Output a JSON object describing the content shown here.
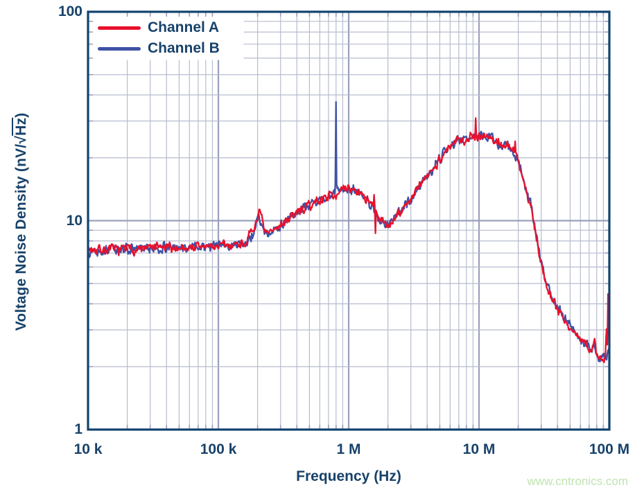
{
  "chart_data": {
    "type": "line",
    "title": "",
    "xlabel": "Frequency (Hz)",
    "ylabel": "Voltage Noise Density (nV/√Hz)",
    "ylabel_parts": {
      "prefix": "Voltage Noise Density (nV/√",
      "overlined": "Hz",
      "suffix": ")"
    },
    "x_scale": "log",
    "y_scale": "log",
    "xlim": [
      10000,
      100000000
    ],
    "ylim": [
      1,
      100
    ],
    "x_ticks": [
      {
        "v": 10000,
        "label": "10 k"
      },
      {
        "v": 100000,
        "label": "100 k"
      },
      {
        "v": 1000000,
        "label": "1 M"
      },
      {
        "v": 10000000,
        "label": "10 M"
      },
      {
        "v": 100000000,
        "label": "100 M"
      }
    ],
    "y_ticks": [
      {
        "v": 100,
        "label": "100"
      },
      {
        "v": 10,
        "label": "10"
      },
      {
        "v": 1,
        "label": "1"
      }
    ],
    "grid": {
      "minor": true,
      "major": true,
      "minor_color": "#b7bccf",
      "major_color": "#9aa0bb"
    },
    "frame_color": "#11436e",
    "text_color": "#17426a",
    "legend": {
      "position": "top-left",
      "entries": [
        "Channel A",
        "Channel B"
      ]
    },
    "noise_sigma_log10": 0.026,
    "series": [
      {
        "name": "Channel B",
        "color": "#3e52a5",
        "seed": 13,
        "anchors": [
          [
            10000.0,
            7.25
          ],
          [
            15000.0,
            7.3
          ],
          [
            22000.0,
            7.3
          ],
          [
            32000.0,
            7.35
          ],
          [
            50000.0,
            7.45
          ],
          [
            70000.0,
            7.5
          ],
          [
            100000.0,
            7.6
          ],
          [
            130000.0,
            7.6
          ],
          [
            160000.0,
            7.85
          ],
          [
            185000.0,
            8.6
          ],
          [
            202000.0,
            10.6
          ],
          [
            230000.0,
            8.5
          ],
          [
            260000.0,
            8.9
          ],
          [
            300000.0,
            9.55
          ],
          [
            350000.0,
            10.25
          ],
          [
            450000.0,
            11.35
          ],
          [
            550000.0,
            12.1
          ],
          [
            700000.0,
            13.1
          ],
          [
            850000.0,
            13.8
          ],
          [
            1000000.0,
            14.1
          ],
          [
            1150000.0,
            13.9
          ],
          [
            1350000.0,
            12.9
          ],
          [
            1550000.0,
            11.3
          ],
          [
            1750000.0,
            9.9
          ],
          [
            1950000.0,
            9.6
          ],
          [
            2200000.0,
            10.1
          ],
          [
            2500000.0,
            11
          ],
          [
            2800000.0,
            12.2
          ],
          [
            3300000.0,
            13.9
          ],
          [
            4000000.0,
            16.4
          ],
          [
            5000000.0,
            19.9
          ],
          [
            6000000.0,
            22.7
          ],
          [
            7000000.0,
            24.3
          ],
          [
            8500000.0,
            25.3
          ],
          [
            10000000.0,
            25.9
          ],
          [
            11500000.0,
            25.5
          ],
          [
            13000000.0,
            24.5
          ],
          [
            15000000.0,
            23.1
          ],
          [
            17500000.0,
            22.3
          ],
          [
            18800000.0,
            20.8
          ],
          [
            20000000.0,
            19.3
          ],
          [
            21500000.0,
            16.3
          ],
          [
            23000000.0,
            13.9
          ],
          [
            25000000.0,
            11.9
          ],
          [
            27000000.0,
            9.1
          ],
          [
            29000000.0,
            6.9
          ],
          [
            32000000.0,
            5.4
          ],
          [
            36000000.0,
            4.35
          ],
          [
            40000000.0,
            3.85
          ],
          [
            45000000.0,
            3.45
          ],
          [
            50000000.0,
            3.1
          ],
          [
            55000000.0,
            2.9
          ],
          [
            62000000.0,
            2.7
          ],
          [
            70000000.0,
            2.5
          ],
          [
            74000000.0,
            2.45
          ],
          [
            77000000.0,
            2.6
          ],
          [
            80000000.0,
            2.35
          ],
          [
            84000000.0,
            2.2
          ],
          [
            88000000.0,
            2.25
          ],
          [
            91000000.0,
            2.2
          ],
          [
            94000000.0,
            2.25
          ],
          [
            97000000.0,
            2.3
          ],
          [
            100000000.0,
            2.4
          ]
        ],
        "spikes": [
          [
            790000.0,
            15
          ],
          [
            800000.0,
            37
          ],
          [
            810000.0,
            15
          ]
        ]
      },
      {
        "name": "Channel A",
        "color": "#e8112d",
        "seed": 7,
        "anchors": [
          [
            10000.0,
            7.3
          ],
          [
            15000.0,
            7.25
          ],
          [
            22000.0,
            7.3
          ],
          [
            32000.0,
            7.4
          ],
          [
            50000.0,
            7.4
          ],
          [
            70000.0,
            7.5
          ],
          [
            100000.0,
            7.55
          ],
          [
            130000.0,
            7.65
          ],
          [
            160000.0,
            7.9
          ],
          [
            185000.0,
            8.8
          ],
          [
            205000.0,
            11.2
          ],
          [
            230000.0,
            8.5
          ],
          [
            260000.0,
            8.9
          ],
          [
            300000.0,
            9.6
          ],
          [
            350000.0,
            10.3
          ],
          [
            450000.0,
            11.4
          ],
          [
            550000.0,
            12.2
          ],
          [
            700000.0,
            13.2
          ],
          [
            850000.0,
            13.7
          ],
          [
            1000000.0,
            14.2
          ],
          [
            1150000.0,
            14
          ],
          [
            1350000.0,
            13
          ],
          [
            1550000.0,
            11.4
          ],
          [
            1750000.0,
            10
          ],
          [
            1950000.0,
            9.5
          ],
          [
            2200000.0,
            10
          ],
          [
            2500000.0,
            10.9
          ],
          [
            2800000.0,
            12.1
          ],
          [
            3300000.0,
            13.8
          ],
          [
            4000000.0,
            16.3
          ],
          [
            5000000.0,
            19.8
          ],
          [
            6000000.0,
            22.6
          ],
          [
            7000000.0,
            24.2
          ],
          [
            8500000.0,
            25.2
          ],
          [
            10000000.0,
            25.7
          ],
          [
            11500000.0,
            25.4
          ],
          [
            13000000.0,
            24.3
          ],
          [
            15000000.0,
            23.2
          ],
          [
            17500000.0,
            22.4
          ],
          [
            18800000.0,
            21
          ],
          [
            20000000.0,
            19.5
          ],
          [
            21500000.0,
            16.5
          ],
          [
            23000000.0,
            13.8
          ],
          [
            25000000.0,
            11.8
          ],
          [
            27000000.0,
            9
          ],
          [
            29000000.0,
            6.8
          ],
          [
            32000000.0,
            5.3
          ],
          [
            36000000.0,
            4.3
          ],
          [
            40000000.0,
            3.8
          ],
          [
            45000000.0,
            3.4
          ],
          [
            50000000.0,
            3.05
          ],
          [
            55000000.0,
            2.85
          ],
          [
            62000000.0,
            2.65
          ],
          [
            70000000.0,
            2.45
          ],
          [
            74000000.0,
            2.4
          ],
          [
            77000000.0,
            2.75
          ],
          [
            80000000.0,
            2.3
          ],
          [
            84000000.0,
            2.1
          ],
          [
            88000000.0,
            2.2
          ],
          [
            91000000.0,
            2.1
          ],
          [
            93500000.0,
            2.15
          ],
          [
            95000000.0,
            3.4
          ],
          [
            96000000.0,
            2.4
          ],
          [
            96800000.0,
            2.5
          ],
          [
            97500000.0,
            4.3
          ],
          [
            98200000.0,
            5.6
          ],
          [
            98800000.0,
            3.1
          ],
          [
            99400000.0,
            2.6
          ],
          [
            100000000.0,
            2.7
          ]
        ],
        "spikes": [
          [
            1560000.0,
            13.3
          ],
          [
            1600000.0,
            8.7
          ],
          [
            9400000.0,
            31
          ],
          [
            18900000.0,
            24
          ]
        ]
      }
    ]
  },
  "watermark": {
    "text": "www.cntronics.com",
    "color": "#bfe3b0"
  }
}
